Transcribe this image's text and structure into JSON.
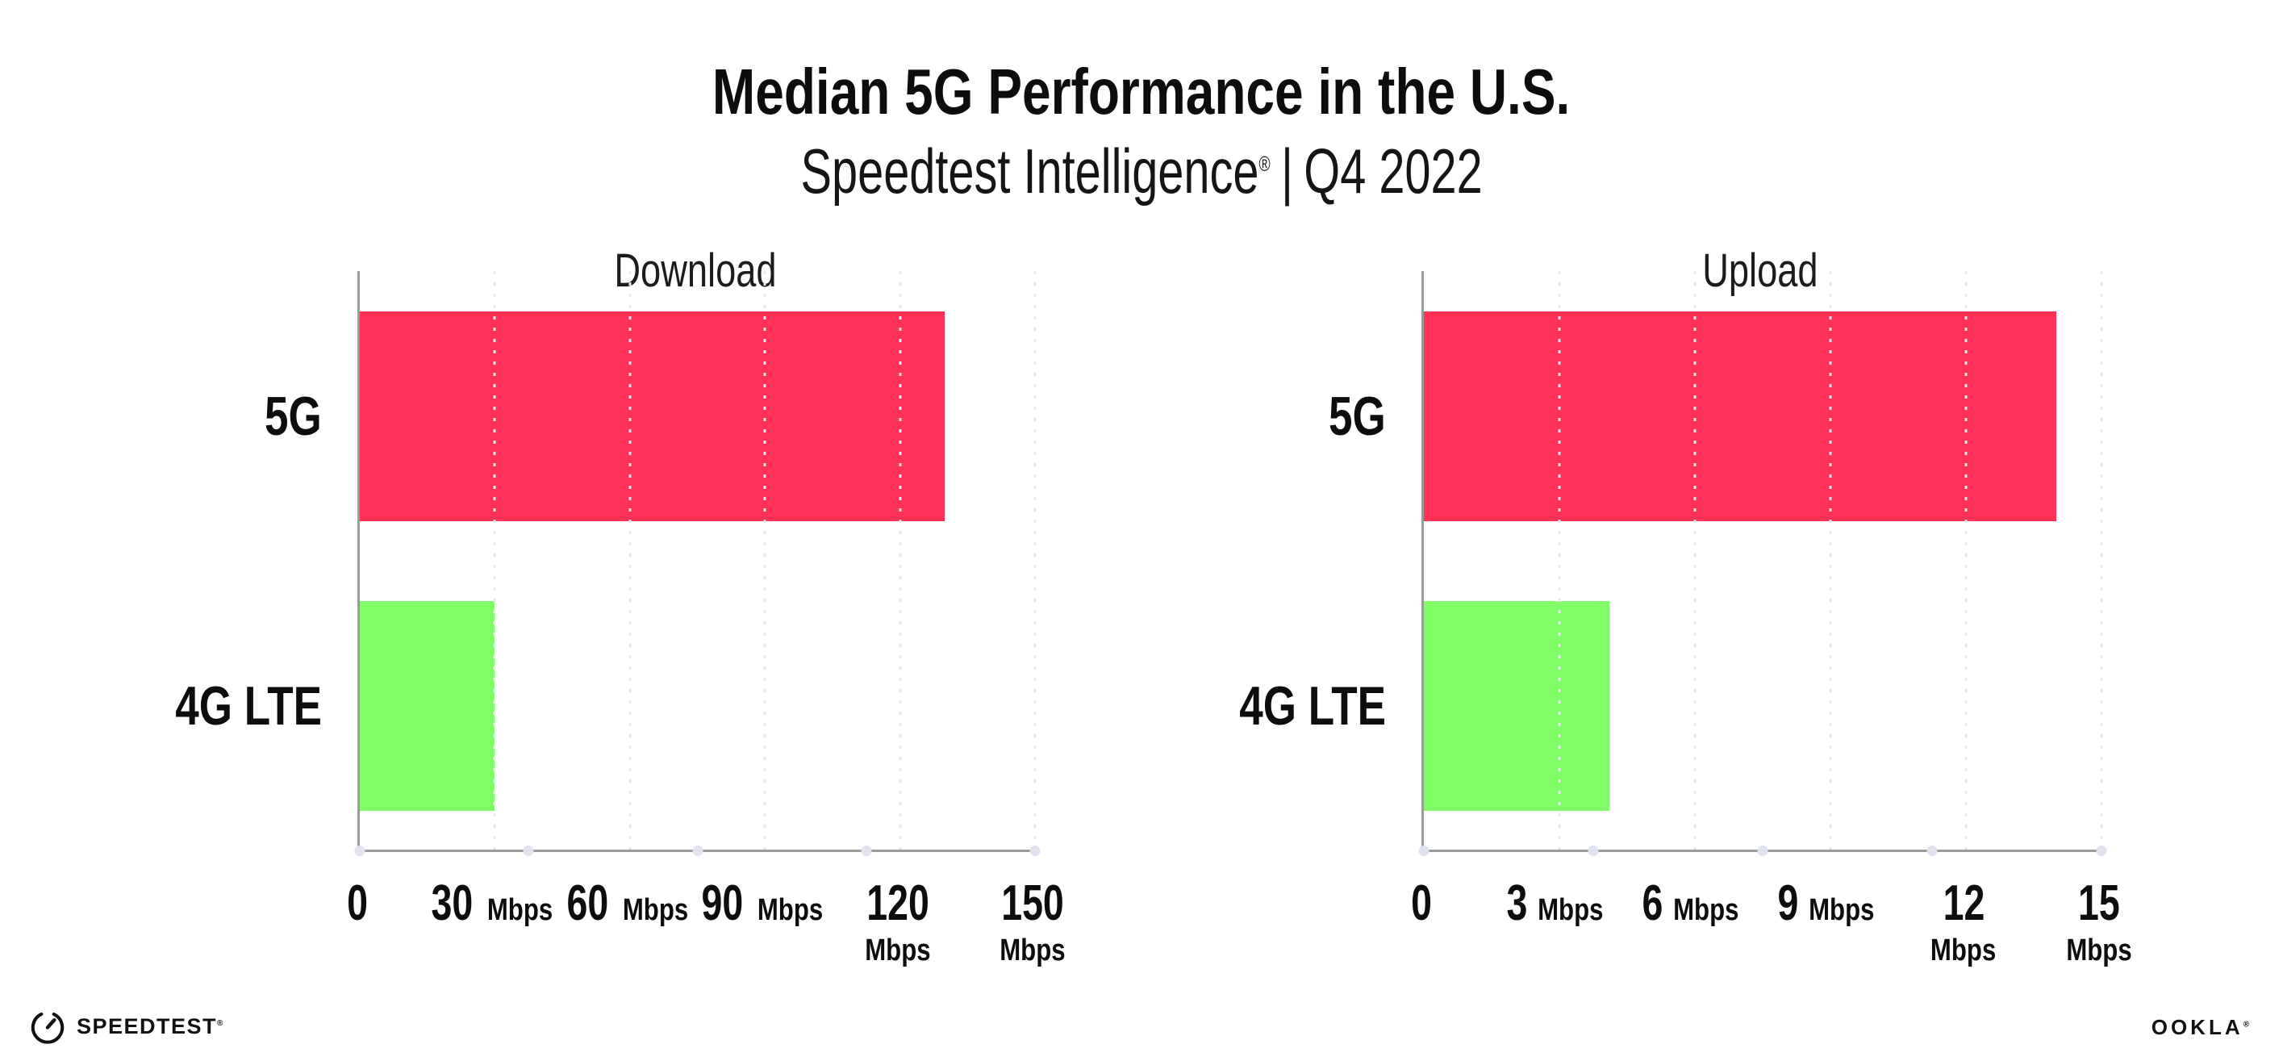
{
  "header": {
    "title": "Median 5G Performance in the U.S.",
    "subtitle": {
      "brand": "Speedtest Intelligence",
      "reg_mark": "®",
      "separator": "|",
      "period": "Q4 2022"
    }
  },
  "footer": {
    "speedtest": {
      "icon": "speedtest-gauge-icon",
      "label": "SPEEDTEST",
      "mark": "®"
    },
    "ookla": {
      "label": "OOKLA",
      "mark": "®"
    }
  },
  "colors": {
    "bar_5g": "#FE3158",
    "bar_4g_lte": "#7FFC66",
    "axis_spine": "#9B9B9B",
    "gridline": "#E7E7EF",
    "baseline_dot": "#E1E3EF",
    "text": "#0D0D0D"
  },
  "chart_data": [
    {
      "type": "bar",
      "orientation": "horizontal",
      "title": "Download",
      "categories": [
        "5G",
        "4G LTE"
      ],
      "values": [
        130,
        30
      ],
      "unit": "Mbps",
      "xlim": [
        0,
        150
      ],
      "xticks": [
        0,
        30,
        60,
        90,
        120,
        150
      ],
      "grid": "vertical-dotted",
      "legend": "none",
      "bar_colors": [
        "#FE3158",
        "#7FFC66"
      ]
    },
    {
      "type": "bar",
      "orientation": "horizontal",
      "title": "Upload",
      "categories": [
        "5G",
        "4G LTE"
      ],
      "values": [
        14,
        4.1
      ],
      "unit": "Mbps",
      "xlim": [
        0,
        15
      ],
      "xticks": [
        0,
        3,
        6,
        9,
        12,
        15
      ],
      "grid": "vertical-dotted",
      "legend": "none",
      "bar_colors": [
        "#FE3158",
        "#7FFC66"
      ]
    }
  ]
}
